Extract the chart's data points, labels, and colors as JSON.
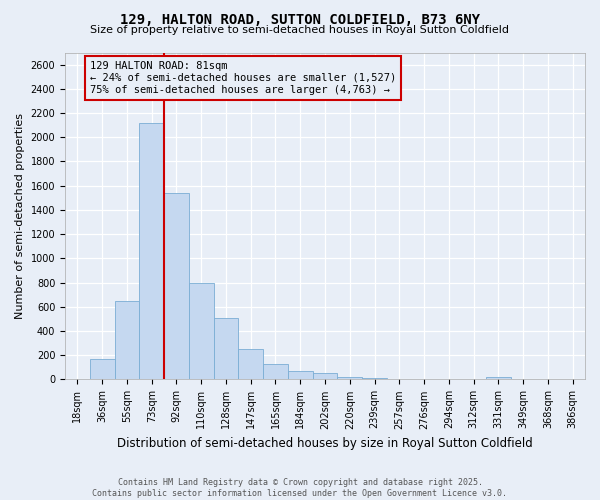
{
  "title": "129, HALTON ROAD, SUTTON COLDFIELD, B73 6NY",
  "subtitle": "Size of property relative to semi-detached houses in Royal Sutton Coldfield",
  "xlabel": "Distribution of semi-detached houses by size in Royal Sutton Coldfield",
  "ylabel": "Number of semi-detached properties",
  "categories": [
    "18sqm",
    "36sqm",
    "55sqm",
    "73sqm",
    "92sqm",
    "110sqm",
    "128sqm",
    "147sqm",
    "165sqm",
    "184sqm",
    "202sqm",
    "220sqm",
    "239sqm",
    "257sqm",
    "276sqm",
    "294sqm",
    "312sqm",
    "331sqm",
    "349sqm",
    "368sqm",
    "386sqm"
  ],
  "values": [
    5,
    170,
    650,
    2120,
    1540,
    800,
    510,
    250,
    125,
    70,
    50,
    20,
    12,
    6,
    3,
    2,
    1,
    20,
    5,
    2,
    1
  ],
  "bar_color": "#c5d8f0",
  "bar_edge_color": "#7aadd4",
  "vline_x_idx": 3,
  "vline_color": "#cc0000",
  "annotation_title": "129 HALTON ROAD: 81sqm",
  "annotation_line1": "← 24% of semi-detached houses are smaller (1,527)",
  "annotation_line2": "75% of semi-detached houses are larger (4,763) →",
  "annotation_box_color": "#cc0000",
  "ylim": [
    0,
    2700
  ],
  "yticks": [
    0,
    200,
    400,
    600,
    800,
    1000,
    1200,
    1400,
    1600,
    1800,
    2000,
    2200,
    2400,
    2600
  ],
  "bg_color": "#e8eef7",
  "plot_bg_color": "#e8eef7",
  "footer": "Contains HM Land Registry data © Crown copyright and database right 2025.\nContains public sector information licensed under the Open Government Licence v3.0.",
  "title_fontsize": 10,
  "subtitle_fontsize": 8,
  "annotation_fontsize": 7.5,
  "tick_fontsize": 7,
  "ylabel_fontsize": 8,
  "xlabel_fontsize": 8.5,
  "footer_fontsize": 6
}
